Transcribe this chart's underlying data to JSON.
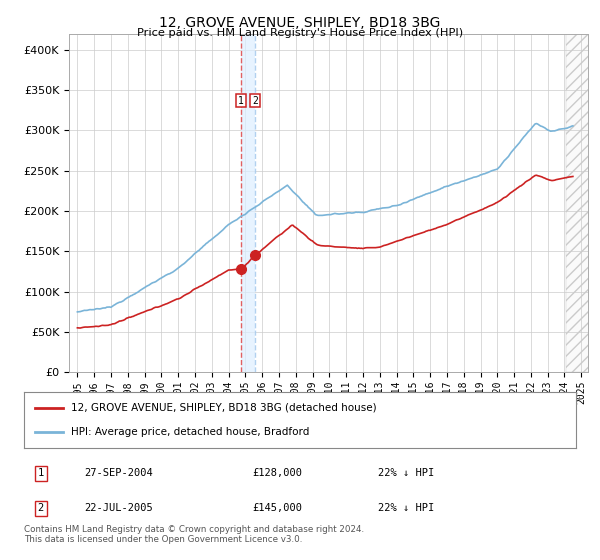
{
  "title": "12, GROVE AVENUE, SHIPLEY, BD18 3BG",
  "subtitle": "Price paid vs. HM Land Registry's House Price Index (HPI)",
  "yticks": [
    0,
    50000,
    100000,
    150000,
    200000,
    250000,
    300000,
    350000,
    400000
  ],
  "ytick_labels": [
    "£0",
    "£50K",
    "£100K",
    "£150K",
    "£200K",
    "£250K",
    "£300K",
    "£350K",
    "£400K"
  ],
  "hpi_color": "#7ab4d8",
  "price_color": "#cc2222",
  "marker_color": "#cc2222",
  "dashed_color": "#e87070",
  "legend_label_price": "12, GROVE AVENUE, SHIPLEY, BD18 3BG (detached house)",
  "legend_label_hpi": "HPI: Average price, detached house, Bradford",
  "transaction1_date": "27-SEP-2004",
  "transaction1_price": "£128,000",
  "transaction1_note": "22% ↓ HPI",
  "transaction2_date": "22-JUL-2005",
  "transaction2_price": "£145,000",
  "transaction2_note": "22% ↓ HPI",
  "footer": "Contains HM Land Registry data © Crown copyright and database right 2024.\nThis data is licensed under the Open Government Licence v3.0.",
  "background_color": "#ffffff",
  "grid_color": "#cccccc"
}
